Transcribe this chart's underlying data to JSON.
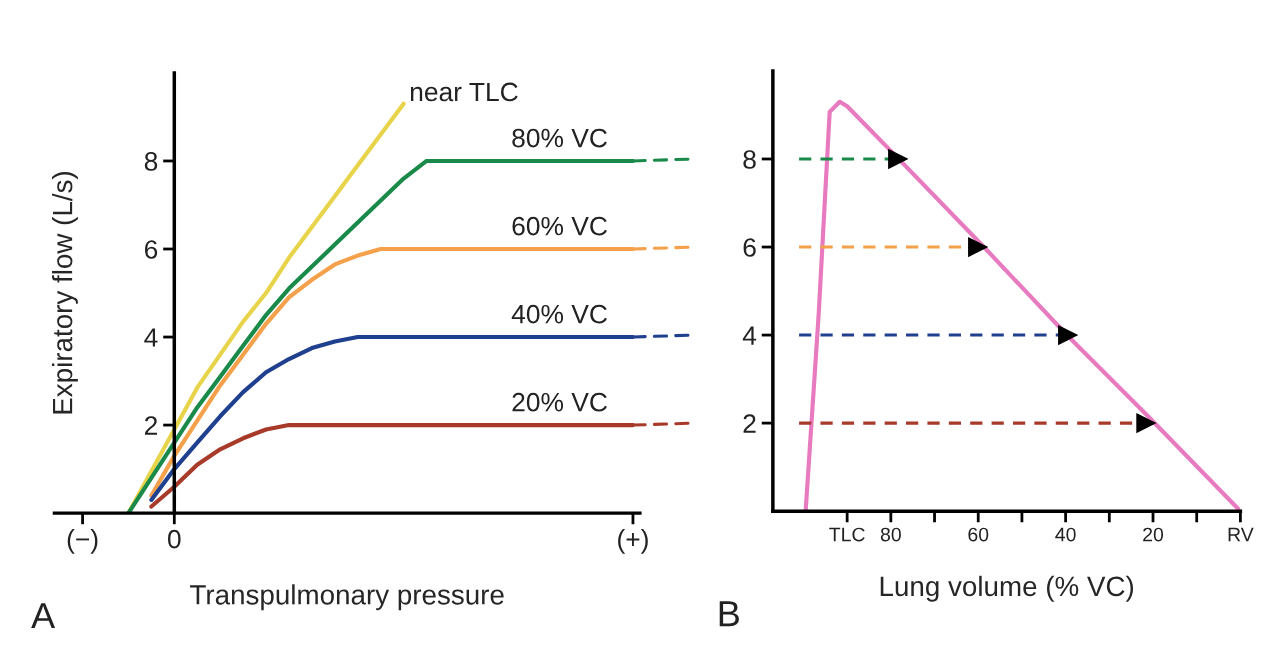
{
  "chart_data": [
    {
      "type": "line",
      "xlabel": "Transpulmonary pressure",
      "ylabel": "Expiratory flow (L/s)",
      "annotations": [
        "A"
      ],
      "categories": [
        "(−)",
        null,
        null,
        null,
        "0",
        null,
        null,
        null,
        null,
        null,
        null,
        null,
        null,
        null,
        null,
        null,
        null,
        null,
        null,
        null,
        null,
        null,
        null,
        null,
        "(+)"
      ],
      "ylim": [
        0,
        10
      ],
      "yticks": [
        2,
        4,
        6,
        8
      ],
      "grid": false,
      "legend": false,
      "series": [
        {
          "name": "near TLC",
          "color": "#e8d44a",
          "values": [
            null,
            null,
            0,
            0.95,
            1.9,
            2.85,
            3.6,
            4.35,
            5.0,
            5.8,
            6.5,
            7.2,
            7.9,
            8.6,
            9.3,
            null,
            null,
            null,
            null,
            null,
            null,
            null,
            null,
            null,
            null
          ]
        },
        {
          "name": "80% VC",
          "color": "#1a8a4a",
          "values": [
            null,
            null,
            0,
            0.8,
            1.6,
            2.4,
            3.1,
            3.8,
            4.5,
            5.1,
            5.6,
            6.1,
            6.6,
            7.1,
            7.6,
            8,
            8,
            8,
            8,
            8,
            8,
            8,
            8,
            8,
            8
          ]
        },
        {
          "name": "60% VC",
          "color": "#f5a04a",
          "values": [
            null,
            null,
            null,
            0.4,
            1.3,
            2.1,
            2.9,
            3.6,
            4.3,
            4.9,
            5.3,
            5.65,
            5.85,
            6,
            6,
            6,
            6,
            6,
            6,
            6,
            6,
            6,
            6,
            6,
            6
          ]
        },
        {
          "name": "40% VC",
          "color": "#1f3f8f",
          "values": [
            null,
            null,
            null,
            0.3,
            1.0,
            1.6,
            2.2,
            2.75,
            3.2,
            3.5,
            3.75,
            3.9,
            4,
            4,
            4,
            4,
            4,
            4,
            4,
            4,
            4,
            4,
            4,
            4,
            4
          ]
        },
        {
          "name": "20% VC",
          "color": "#a83a2a",
          "values": [
            null,
            null,
            null,
            0.15,
            0.6,
            1.1,
            1.45,
            1.7,
            1.9,
            2,
            2,
            2,
            2,
            2,
            2,
            2,
            2,
            2,
            2,
            2,
            2,
            2,
            2,
            2,
            2
          ]
        }
      ]
    },
    {
      "type": "line",
      "xlabel": "Lung volume (% VC)",
      "annotations": [
        "B"
      ],
      "xlim": [
        107,
        0
      ],
      "xticks": [
        {
          "value": 90,
          "label": "TLC"
        },
        80,
        {
          "value": 70,
          "label": null
        },
        60,
        {
          "value": 50,
          "label": null
        },
        40,
        {
          "value": 30,
          "label": null
        },
        20,
        {
          "value": 10,
          "label": null
        },
        {
          "value": 0,
          "label": "RV"
        }
      ],
      "ylim": [
        0,
        10
      ],
      "yticks": [
        2,
        4,
        6,
        8
      ],
      "grid": false,
      "legend": false,
      "series": [
        {
          "color": "#e87ac0",
          "x": [
            99.5,
            96.5,
            94,
            91.7,
            90,
            78,
            58.7,
            39.5,
            21.2,
            0
          ],
          "values": [
            0,
            4.5,
            9.07,
            9.3,
            9.2,
            7.98,
            6.0,
            3.98,
            2.16,
            0
          ]
        },
        {
          "color": "#1a8a4a",
          "line_style": "dashed",
          "marker": "triangle",
          "x": [
            101,
            78.4
          ],
          "values": [
            8,
            8
          ]
        },
        {
          "color": "#f5a04a",
          "line_style": "dashed",
          "marker": "triangle",
          "x": [
            101,
            60.1
          ],
          "values": [
            6,
            6
          ]
        },
        {
          "color": "#1f3f8f",
          "line_style": "dashed",
          "marker": "triangle",
          "x": [
            101,
            39.5
          ],
          "values": [
            4,
            4
          ]
        },
        {
          "color": "#a83a2a",
          "line_style": "dashed",
          "marker": "triangle",
          "x": [
            101,
            21.6
          ],
          "values": [
            2,
            2
          ]
        }
      ]
    }
  ]
}
